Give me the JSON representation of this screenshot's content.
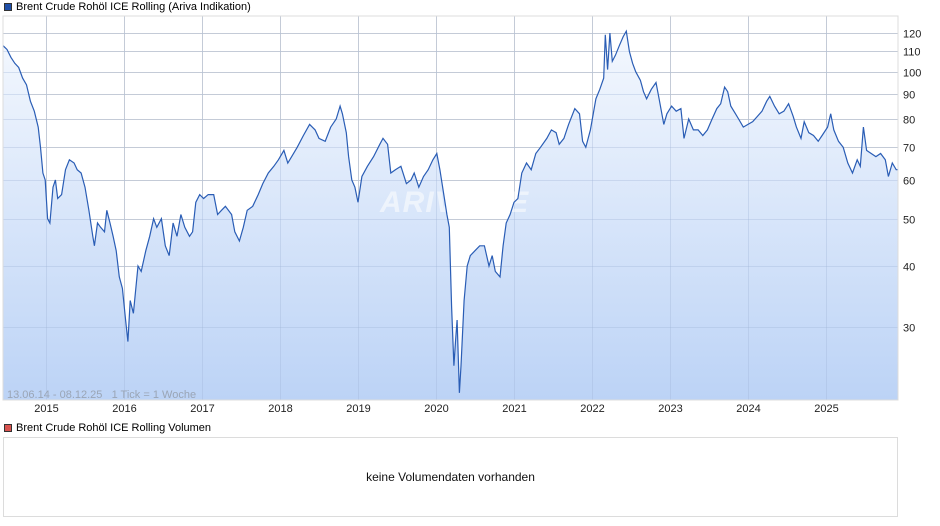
{
  "main_legend": {
    "label": "Brent Crude Rohöl ICE Rolling (Ariva Indikation)",
    "color": "#1f4fa8"
  },
  "volume_legend": {
    "label": "Brent Crude Rohöl ICE Rolling Volumen",
    "color": "#d9534f"
  },
  "range_info": "13.06.14 - 08.12.25   1 Tick = 1 Woche",
  "watermark": "ARIVA.DE",
  "volume_panel": {
    "message": "keine Volumendaten vorhanden"
  },
  "colors": {
    "line": "#2a5db5",
    "fill_top": "#f4f8fe",
    "fill_bottom": "#bcd3f6",
    "grid": "#d8d8d8"
  },
  "chart_data": {
    "type": "area",
    "title": "Brent Crude Rohöl ICE Rolling (Ariva Indikation)",
    "xlabel": "",
    "ylabel": "",
    "y_scale": "log",
    "ylim": [
      21,
      128
    ],
    "xlim": [
      "2014-06-13",
      "2025-12-08"
    ],
    "grid": true,
    "legend_position": "top-left",
    "y_ticks": [
      30,
      40,
      50,
      60,
      70,
      80,
      90,
      100,
      110,
      120
    ],
    "x_ticks": [
      "2015",
      "2016",
      "2017",
      "2018",
      "2019",
      "2020",
      "2021",
      "2022",
      "2023",
      "2024",
      "2025"
    ],
    "series": [
      {
        "name": "Brent Crude Rohöl ICE Rolling",
        "points": [
          [
            2014.45,
            113
          ],
          [
            2014.5,
            111
          ],
          [
            2014.55,
            107
          ],
          [
            2014.6,
            104
          ],
          [
            2014.65,
            102
          ],
          [
            2014.7,
            97
          ],
          [
            2014.75,
            94
          ],
          [
            2014.8,
            87
          ],
          [
            2014.85,
            83
          ],
          [
            2014.9,
            77
          ],
          [
            2014.93,
            70
          ],
          [
            2014.96,
            62
          ],
          [
            2014.99,
            60
          ],
          [
            2015.02,
            50
          ],
          [
            2015.05,
            49
          ],
          [
            2015.09,
            58
          ],
          [
            2015.12,
            60
          ],
          [
            2015.15,
            55
          ],
          [
            2015.2,
            56
          ],
          [
            2015.25,
            63
          ],
          [
            2015.3,
            66
          ],
          [
            2015.36,
            65
          ],
          [
            2015.4,
            63
          ],
          [
            2015.45,
            62
          ],
          [
            2015.5,
            58
          ],
          [
            2015.55,
            52
          ],
          [
            2015.6,
            46
          ],
          [
            2015.62,
            44
          ],
          [
            2015.66,
            49
          ],
          [
            2015.7,
            48
          ],
          [
            2015.75,
            47
          ],
          [
            2015.78,
            52
          ],
          [
            2015.82,
            49
          ],
          [
            2015.86,
            46
          ],
          [
            2015.9,
            43
          ],
          [
            2015.94,
            38
          ],
          [
            2015.98,
            36
          ],
          [
            2016.02,
            31
          ],
          [
            2016.05,
            28
          ],
          [
            2016.08,
            34
          ],
          [
            2016.12,
            32
          ],
          [
            2016.18,
            40
          ],
          [
            2016.22,
            39
          ],
          [
            2016.28,
            43
          ],
          [
            2016.33,
            46
          ],
          [
            2016.38,
            50
          ],
          [
            2016.42,
            48
          ],
          [
            2016.48,
            50
          ],
          [
            2016.53,
            44
          ],
          [
            2016.58,
            42
          ],
          [
            2016.63,
            49
          ],
          [
            2016.68,
            46
          ],
          [
            2016.73,
            51
          ],
          [
            2016.78,
            48
          ],
          [
            2016.84,
            46
          ],
          [
            2016.88,
            47
          ],
          [
            2016.92,
            54
          ],
          [
            2016.97,
            56
          ],
          [
            2017.02,
            55
          ],
          [
            2017.08,
            56
          ],
          [
            2017.15,
            56
          ],
          [
            2017.2,
            51
          ],
          [
            2017.25,
            52
          ],
          [
            2017.3,
            53
          ],
          [
            2017.38,
            51
          ],
          [
            2017.42,
            47
          ],
          [
            2017.48,
            45
          ],
          [
            2017.53,
            48
          ],
          [
            2017.58,
            52
          ],
          [
            2017.65,
            53
          ],
          [
            2017.72,
            56
          ],
          [
            2017.78,
            59
          ],
          [
            2017.85,
            62
          ],
          [
            2017.92,
            64
          ],
          [
            2017.98,
            66
          ],
          [
            2018.05,
            69
          ],
          [
            2018.1,
            65
          ],
          [
            2018.15,
            67
          ],
          [
            2018.22,
            70
          ],
          [
            2018.3,
            74
          ],
          [
            2018.38,
            78
          ],
          [
            2018.45,
            76
          ],
          [
            2018.5,
            73
          ],
          [
            2018.58,
            72
          ],
          [
            2018.65,
            77
          ],
          [
            2018.72,
            80
          ],
          [
            2018.77,
            85
          ],
          [
            2018.8,
            82
          ],
          [
            2018.85,
            75
          ],
          [
            2018.88,
            67
          ],
          [
            2018.92,
            60
          ],
          [
            2018.96,
            58
          ],
          [
            2019.0,
            54
          ],
          [
            2019.05,
            61
          ],
          [
            2019.12,
            64
          ],
          [
            2019.2,
            67
          ],
          [
            2019.28,
            71
          ],
          [
            2019.32,
            73
          ],
          [
            2019.38,
            71
          ],
          [
            2019.42,
            62
          ],
          [
            2019.48,
            63
          ],
          [
            2019.55,
            64
          ],
          [
            2019.62,
            59
          ],
          [
            2019.68,
            60
          ],
          [
            2019.72,
            62
          ],
          [
            2019.78,
            58
          ],
          [
            2019.84,
            61
          ],
          [
            2019.9,
            63
          ],
          [
            2019.96,
            66
          ],
          [
            2020.01,
            68
          ],
          [
            2020.05,
            63
          ],
          [
            2020.1,
            56
          ],
          [
            2020.14,
            51
          ],
          [
            2020.17,
            48
          ],
          [
            2020.2,
            33
          ],
          [
            2020.23,
            25
          ],
          [
            2020.25,
            28
          ],
          [
            2020.27,
            31
          ],
          [
            2020.3,
            22
          ],
          [
            2020.32,
            25
          ],
          [
            2020.36,
            34
          ],
          [
            2020.4,
            40
          ],
          [
            2020.44,
            42
          ],
          [
            2020.5,
            43
          ],
          [
            2020.56,
            44
          ],
          [
            2020.62,
            44
          ],
          [
            2020.68,
            40
          ],
          [
            2020.72,
            42
          ],
          [
            2020.76,
            39
          ],
          [
            2020.82,
            38
          ],
          [
            2020.86,
            44
          ],
          [
            2020.9,
            49
          ],
          [
            2020.95,
            51
          ],
          [
            2021.0,
            54
          ],
          [
            2021.05,
            55
          ],
          [
            2021.1,
            62
          ],
          [
            2021.16,
            65
          ],
          [
            2021.22,
            63
          ],
          [
            2021.28,
            68
          ],
          [
            2021.34,
            70
          ],
          [
            2021.42,
            73
          ],
          [
            2021.48,
            76
          ],
          [
            2021.54,
            75
          ],
          [
            2021.58,
            71
          ],
          [
            2021.64,
            73
          ],
          [
            2021.7,
            78
          ],
          [
            2021.78,
            84
          ],
          [
            2021.84,
            82
          ],
          [
            2021.88,
            72
          ],
          [
            2021.92,
            70
          ],
          [
            2021.98,
            76
          ],
          [
            2022.05,
            88
          ],
          [
            2022.1,
            92
          ],
          [
            2022.15,
            97
          ],
          [
            2022.17,
            119
          ],
          [
            2022.2,
            101
          ],
          [
            2022.23,
            120
          ],
          [
            2022.26,
            105
          ],
          [
            2022.3,
            108
          ],
          [
            2022.35,
            113
          ],
          [
            2022.4,
            118
          ],
          [
            2022.44,
            121
          ],
          [
            2022.48,
            110
          ],
          [
            2022.52,
            104
          ],
          [
            2022.56,
            100
          ],
          [
            2022.62,
            96
          ],
          [
            2022.66,
            91
          ],
          [
            2022.7,
            88
          ],
          [
            2022.76,
            92
          ],
          [
            2022.82,
            95
          ],
          [
            2022.86,
            88
          ],
          [
            2022.92,
            78
          ],
          [
            2022.96,
            82
          ],
          [
            2023.02,
            85
          ],
          [
            2023.08,
            83
          ],
          [
            2023.14,
            84
          ],
          [
            2023.18,
            73
          ],
          [
            2023.24,
            80
          ],
          [
            2023.3,
            76
          ],
          [
            2023.36,
            76
          ],
          [
            2023.42,
            74
          ],
          [
            2023.48,
            76
          ],
          [
            2023.54,
            80
          ],
          [
            2023.6,
            84
          ],
          [
            2023.65,
            86
          ],
          [
            2023.7,
            93
          ],
          [
            2023.74,
            91
          ],
          [
            2023.78,
            85
          ],
          [
            2023.84,
            82
          ],
          [
            2023.88,
            80
          ],
          [
            2023.94,
            77
          ],
          [
            2024.0,
            78
          ],
          [
            2024.06,
            79
          ],
          [
            2024.12,
            81
          ],
          [
            2024.18,
            83
          ],
          [
            2024.24,
            87
          ],
          [
            2024.28,
            89
          ],
          [
            2024.34,
            85
          ],
          [
            2024.4,
            82
          ],
          [
            2024.46,
            83
          ],
          [
            2024.52,
            86
          ],
          [
            2024.58,
            81
          ],
          [
            2024.62,
            77
          ],
          [
            2024.68,
            73
          ],
          [
            2024.72,
            79
          ],
          [
            2024.78,
            75
          ],
          [
            2024.84,
            74
          ],
          [
            2024.9,
            72
          ],
          [
            2024.95,
            74
          ],
          [
            2025.02,
            77
          ],
          [
            2025.06,
            82
          ],
          [
            2025.1,
            76
          ],
          [
            2025.16,
            72
          ],
          [
            2025.22,
            70
          ],
          [
            2025.28,
            65
          ],
          [
            2025.34,
            62
          ],
          [
            2025.4,
            66
          ],
          [
            2025.44,
            64
          ],
          [
            2025.48,
            77
          ],
          [
            2025.52,
            69
          ],
          [
            2025.58,
            68
          ],
          [
            2025.64,
            67
          ],
          [
            2025.7,
            68
          ],
          [
            2025.76,
            66
          ],
          [
            2025.8,
            61
          ],
          [
            2025.85,
            65
          ],
          [
            2025.9,
            63
          ],
          [
            2025.93,
            63
          ]
        ]
      }
    ]
  }
}
